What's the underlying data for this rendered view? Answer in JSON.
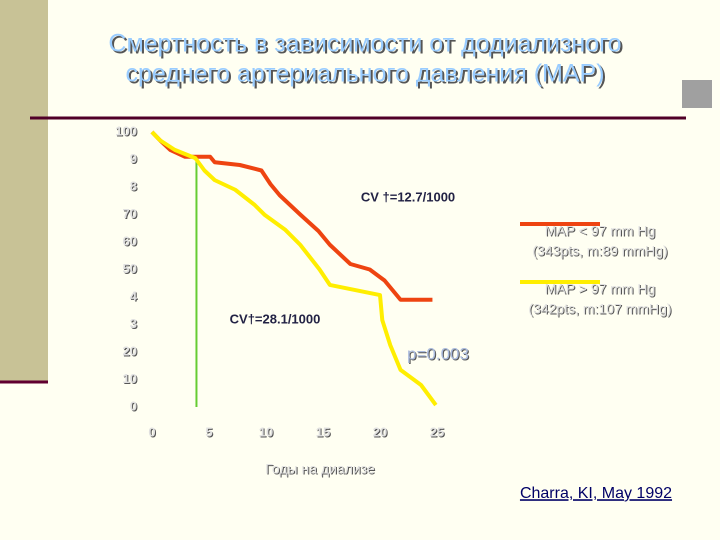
{
  "chart_data": {
    "type": "line",
    "title": [
      "Смертность в зависимости от додиализного",
      "среднего артериального давления (MAP)"
    ],
    "x_label": "Годы на диализе",
    "xlim": [
      0,
      25
    ],
    "xticks": [
      0,
      5,
      10,
      15,
      20,
      25
    ],
    "ylim": [
      0,
      100
    ],
    "yticks": [
      0,
      10,
      20,
      {
        "value": 30,
        "label": "3"
      },
      {
        "value": 40,
        "label": "4"
      },
      50,
      60,
      70,
      {
        "value": 80,
        "label": "8"
      },
      {
        "value": 90,
        "label": "9"
      },
      100
    ],
    "series": [
      {
        "name": [
          "MAP < 97 mm Hg",
          "(343pts, m:89 mmHg)"
        ],
        "color": "#ee4411",
        "x": [
          0,
          0.7,
          1.6,
          2.9,
          5.1,
          5.5,
          7.7,
          9.6,
          10.4,
          11.2,
          13,
          14.6,
          15.6,
          17.4,
          19.1,
          20.4,
          21.8,
          24.6
        ],
        "values": [
          100,
          97,
          93.5,
          91,
          91,
          89,
          88,
          86,
          81,
          77,
          70,
          64,
          59,
          52,
          50,
          46,
          39,
          39
        ]
      },
      {
        "name": [
          "MAP > 97 mm Hg",
          "(342pts, m:107 mmHg)"
        ],
        "color": "#ffee00",
        "x": [
          0,
          0.7,
          2,
          3.8,
          4.6,
          5.5,
          7.3,
          9,
          9.9,
          11.7,
          13,
          14.7,
          15.6,
          20,
          20.2,
          20.9,
          21.8,
          23.6,
          24.9
        ],
        "values": [
          100,
          97,
          93.5,
          90.5,
          86,
          82.5,
          79,
          73.5,
          69.8,
          64.4,
          59,
          50,
          44.4,
          40.7,
          31.6,
          22.5,
          13.5,
          8,
          0.7
        ]
      }
    ],
    "vline": {
      "x": 3.9,
      "top": 91,
      "color": "#66cc33"
    },
    "annotations": [
      "CV †=12.7/1000",
      "CV†=28.1/1000",
      "p=0.003"
    ],
    "source": "Charra, KI, May 1992"
  }
}
